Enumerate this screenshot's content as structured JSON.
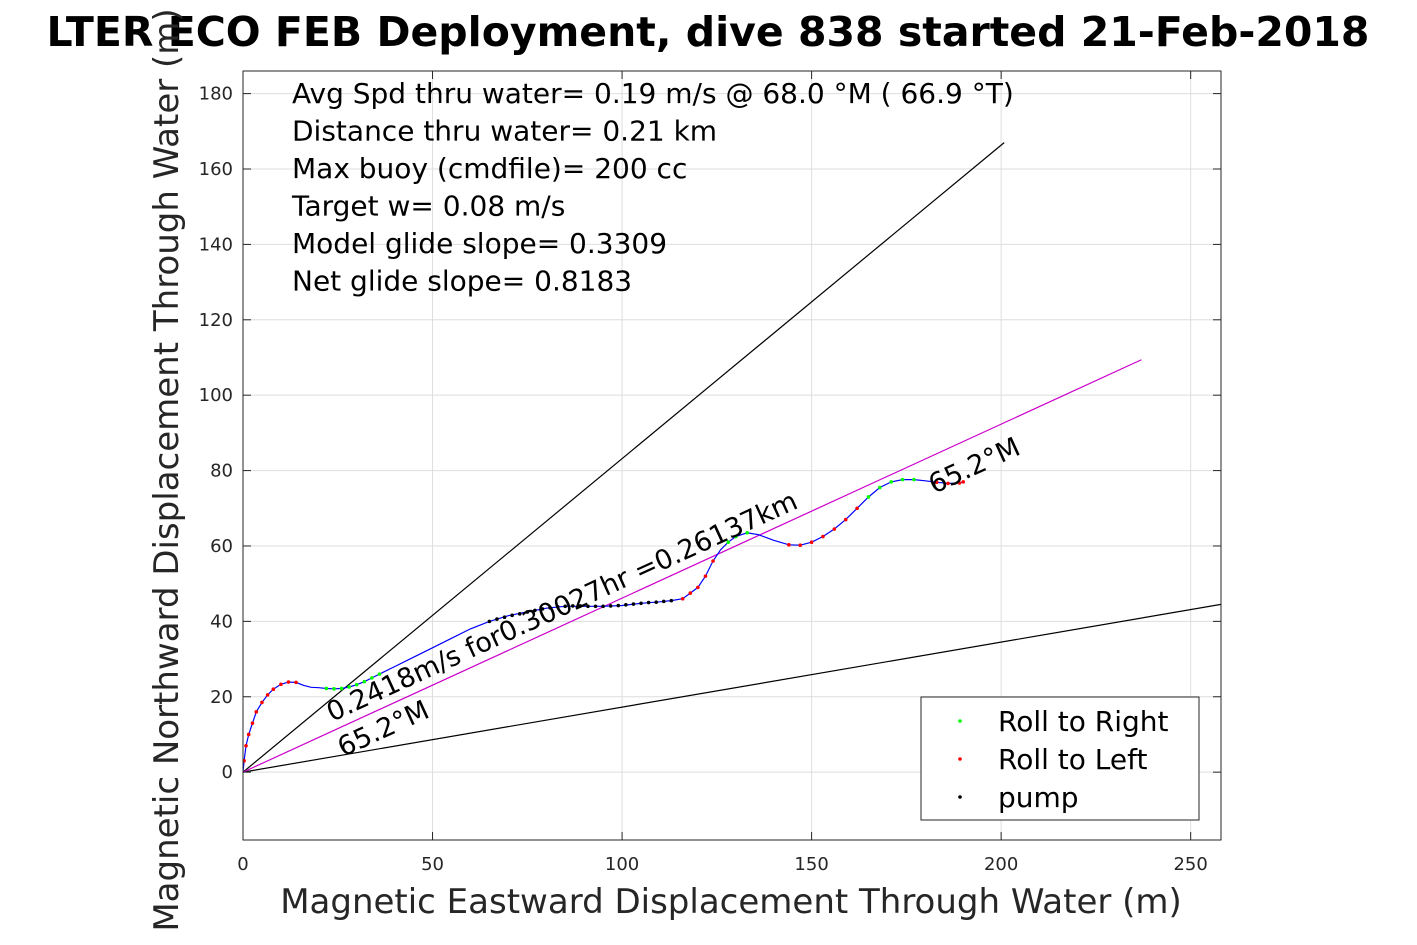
{
  "chart_data": {
    "type": "line",
    "title": "LTER ECO FEB Deployment, dive 838 started 21-Feb-2018",
    "xlabel": "Magnetic Eastward Displacement Through Water (m)",
    "ylabel": "Magnetic Northward Displacement Through Water (m)",
    "xlim": [
      0,
      258
    ],
    "ylim": [
      -18,
      186
    ],
    "xticks": [
      0,
      50,
      100,
      150,
      200,
      250
    ],
    "yticks": [
      0,
      20,
      40,
      60,
      80,
      100,
      120,
      140,
      160,
      180
    ],
    "grid": true,
    "legend_position": "bottom-right",
    "info_lines": [
      "Avg Spd thru water=  0.19 m/s @  68.0 °M ( 66.9 °T)",
      "Distance thru water=  0.21 km",
      "Max buoy (cmdfile)= 200 cc",
      "Target w= 0.08 m/s",
      "Model glide slope= 0.3309",
      "Net glide slope= 0.8183"
    ],
    "annotations": {
      "speed": "0.2418m/s for0.30027hr =0.26137km",
      "heading_start": "65.2°M",
      "heading_end": "65.2°M"
    },
    "reference_lines": [
      {
        "name": "upper-bound",
        "x": [
          0,
          200.8
        ],
        "y": [
          0,
          167.0
        ],
        "color": "#000000"
      },
      {
        "name": "lower-bound",
        "x": [
          0,
          258
        ],
        "y": [
          0,
          44.5
        ],
        "color": "#000000"
      },
      {
        "name": "heading",
        "x": [
          0,
          237
        ],
        "y": [
          0,
          109.4
        ],
        "color": "#cc00cc"
      }
    ],
    "track": {
      "color": "#0000ff",
      "x": [
        0,
        0.3,
        0.8,
        1.5,
        2.5,
        3.5,
        5,
        6.5,
        8,
        10,
        12,
        14,
        16,
        18,
        20,
        22,
        24,
        26,
        28,
        30,
        32,
        34,
        36,
        40,
        45,
        50,
        55,
        60,
        65,
        70,
        75,
        80,
        85,
        90,
        95,
        100,
        105,
        110,
        113,
        116,
        118,
        120,
        122,
        124,
        126,
        128,
        130,
        133,
        136,
        140,
        144,
        147,
        150,
        153,
        156,
        159,
        162,
        165,
        168,
        171,
        174,
        177,
        180,
        183,
        186,
        189,
        190
      ],
      "y": [
        0,
        3,
        7,
        10,
        13,
        16,
        18.5,
        20.5,
        22,
        23.3,
        23.9,
        23.8,
        23,
        22.5,
        22.4,
        22.2,
        22.1,
        22.2,
        22.6,
        23.2,
        24,
        25,
        26,
        28,
        30.5,
        33,
        35.5,
        38,
        40,
        41.5,
        42.5,
        43.5,
        44,
        44,
        44,
        44.2,
        44.8,
        45.2,
        45.5,
        46,
        47.5,
        49,
        52,
        56,
        59,
        61,
        62.5,
        63.5,
        63,
        61.5,
        60.3,
        60.2,
        61,
        62.5,
        64.5,
        67,
        70,
        73,
        75.5,
        77,
        77.6,
        77.6,
        77.3,
        76.9,
        76.6,
        76.7,
        77
      ]
    },
    "series": [
      {
        "name": "Roll to Right",
        "color": "#00ff00",
        "x": [
          22,
          24,
          26,
          28,
          30,
          32,
          34,
          36,
          128,
          130,
          133,
          165,
          168,
          171,
          174,
          177
        ],
        "y": [
          22.2,
          22.1,
          22.2,
          22.6,
          23.2,
          24,
          25,
          26,
          61,
          62.5,
          63.5,
          73,
          75.5,
          77,
          77.6,
          77.6
        ]
      },
      {
        "name": "Roll to Left",
        "color": "#ff0000",
        "x": [
          0.3,
          0.8,
          1.5,
          2.5,
          3.5,
          5,
          6.5,
          8,
          10,
          12,
          14,
          116,
          118,
          120,
          122,
          124,
          144,
          147,
          150,
          153,
          156,
          159,
          162,
          183,
          186,
          189,
          190
        ],
        "y": [
          3,
          7,
          10,
          13,
          16,
          18.5,
          20.5,
          22,
          23.3,
          23.9,
          23.8,
          46,
          47.5,
          49,
          52,
          56,
          60.3,
          60.2,
          61,
          62.5,
          64.5,
          67,
          70,
          76.9,
          76.6,
          76.7,
          77
        ]
      },
      {
        "name": "pump",
        "color": "#000000",
        "x": [
          65,
          67,
          69,
          71,
          73,
          75,
          77,
          79,
          81,
          83,
          85,
          87,
          89,
          91,
          93,
          95,
          97,
          99,
          101,
          103,
          105,
          107,
          109,
          111,
          113
        ],
        "y": [
          40,
          40.6,
          41.1,
          41.6,
          42,
          42.5,
          42.9,
          43.3,
          43.6,
          43.9,
          44,
          44.1,
          44.1,
          44,
          44,
          44,
          44.1,
          44.2,
          44.4,
          44.6,
          44.8,
          45,
          45.1,
          45.3,
          45.5
        ]
      }
    ]
  }
}
